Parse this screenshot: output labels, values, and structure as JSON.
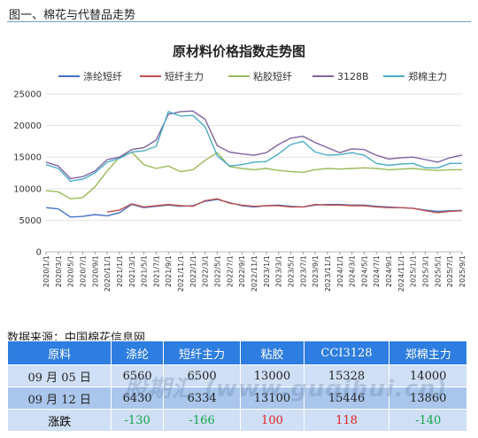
{
  "page": {
    "caption": "图一、棉花与代替品走势",
    "source": "数据来源：中国棉花信息网",
    "watermark": "股期汇 (www.guqihui.cn)"
  },
  "chart_data": {
    "type": "line",
    "title": "原材料价格指数走势图",
    "xlabel": "",
    "ylabel": "",
    "ylim": [
      0,
      25000
    ],
    "yticks": [
      "0",
      "5000",
      "10000",
      "15000",
      "20000",
      "25000"
    ],
    "x": [
      "2020/1/1",
      "2020/3/1",
      "2020/5/1",
      "2020/7/1",
      "2020/9/1",
      "2020/11/1",
      "2021/1/1",
      "2021/3/1",
      "2021/5/1",
      "2021/7/1",
      "2021/9/1",
      "2021/11/1",
      "2022/1/1",
      "2022/3/1",
      "2022/5/1",
      "2022/7/1",
      "2022/9/1",
      "2022/11/1",
      "2023/1/1",
      "2023/3/1",
      "2023/5/1",
      "2023/7/1",
      "2023/9/1",
      "2023/11/1",
      "2024/1/1",
      "2024/3/1",
      "2024/5/1",
      "2024/7/1",
      "2024/9/1",
      "2024/11/1",
      "2025/1/1",
      "2025/3/1",
      "2025/5/1",
      "2025/7/1",
      "2025/9/1"
    ],
    "legend_position": "top",
    "grid": "horizontal",
    "series": [
      {
        "name": "涤纶短纤",
        "color": "#4472c4",
        "values": [
          7000,
          6800,
          5500,
          5600,
          5900,
          5700,
          6200,
          7500,
          7000,
          7200,
          7400,
          7200,
          7300,
          8000,
          8300,
          7800,
          7300,
          7100,
          7300,
          7400,
          7200,
          7100,
          7400,
          7500,
          7500,
          7400,
          7400,
          7200,
          7100,
          7000,
          6900,
          6600,
          6400,
          6500,
          6560
        ]
      },
      {
        "name": "短纤主力",
        "color": "#c0504d",
        "values": [
          null,
          null,
          null,
          null,
          null,
          6300,
          6600,
          7600,
          7100,
          7300,
          7500,
          7300,
          7200,
          8100,
          8400,
          7700,
          7400,
          7200,
          7300,
          7300,
          7100,
          7100,
          7500,
          7400,
          7400,
          7300,
          7300,
          7100,
          7000,
          7000,
          6900,
          6500,
          6200,
          6400,
          6500
        ]
      },
      {
        "name": "粘胶短纤",
        "color": "#9bbb59",
        "values": [
          9700,
          9500,
          8400,
          8600,
          10300,
          12800,
          15000,
          15800,
          13800,
          13200,
          13600,
          12700,
          13000,
          14500,
          15700,
          13500,
          13200,
          13000,
          13200,
          12900,
          12700,
          12600,
          13000,
          13200,
          13100,
          13200,
          13300,
          13200,
          13000,
          13100,
          13200,
          13000,
          12900,
          13000,
          13000
        ]
      },
      {
        "name": "3128B",
        "color": "#8064a2",
        "values": [
          14200,
          13600,
          11600,
          11900,
          12800,
          14600,
          15000,
          16200,
          16500,
          17700,
          21800,
          22200,
          22300,
          21000,
          16800,
          15800,
          15500,
          15300,
          15700,
          17000,
          18000,
          18300,
          17300,
          16500,
          15700,
          16300,
          16200,
          15300,
          14700,
          14900,
          15000,
          14600,
          14200,
          14900,
          15328
        ]
      },
      {
        "name": "郑棉主力",
        "color": "#4bacc6",
        "values": [
          13800,
          13200,
          11200,
          11500,
          12500,
          14200,
          14800,
          15800,
          16000,
          16700,
          22200,
          21500,
          21600,
          19800,
          15200,
          13600,
          13800,
          14200,
          14300,
          15500,
          17000,
          17500,
          15800,
          15300,
          15400,
          15700,
          15300,
          14000,
          13700,
          13900,
          14000,
          13300,
          13300,
          14000,
          14000
        ]
      }
    ]
  },
  "table": {
    "headers": [
      "原料",
      "涤纶",
      "短纤主力",
      "粘胶",
      "CCI3128",
      "郑棉主力"
    ],
    "rows": [
      [
        "09 月 05 日",
        "6560",
        "6500",
        "13000",
        "15328",
        "14000"
      ],
      [
        "09 月 12 日",
        "6430",
        "6334",
        "13100",
        "15446",
        "13860"
      ],
      [
        "涨跌",
        "-130",
        "-166",
        "100",
        "118",
        "-140"
      ]
    ]
  }
}
